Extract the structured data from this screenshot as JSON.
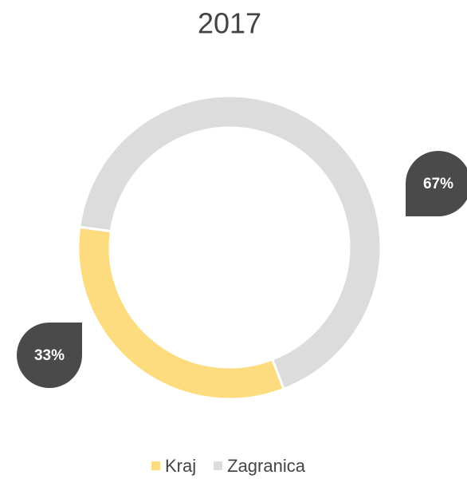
{
  "chart_data": {
    "type": "donut",
    "title": "2017",
    "categories": [
      "Kraj",
      "Zagranica"
    ],
    "values": [
      33,
      67
    ],
    "value_labels": [
      "33%",
      "67%"
    ],
    "colors": [
      "#fddc80",
      "#dcdcdc"
    ],
    "legend": "bottom"
  }
}
